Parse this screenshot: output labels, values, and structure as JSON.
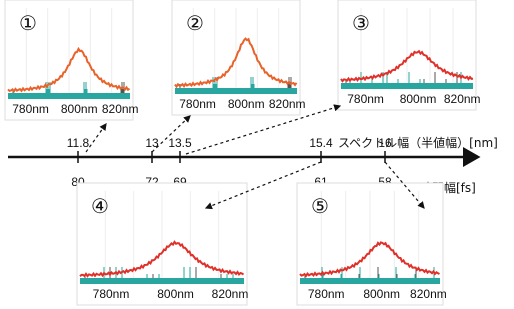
{
  "axis": {
    "spectral_title": "スペクトル幅（半値幅）[nm]",
    "time_title": "時間幅[fs]"
  },
  "points": [
    {
      "spectral_width": "11.8",
      "pulse_width": "80"
    },
    {
      "spectral_width": "13",
      "pulse_width": "72"
    },
    {
      "spectral_width": "13.5",
      "pulse_width": "69"
    },
    {
      "spectral_width": "15.4",
      "pulse_width": "61"
    },
    {
      "spectral_width": "16",
      "pulse_width": "58"
    }
  ],
  "insets": [
    {
      "label": "①",
      "ticks": [
        "780nm",
        "800nm",
        "820nm"
      ]
    },
    {
      "label": "②",
      "ticks": [
        "780nm",
        "800nm",
        "820nm"
      ]
    },
    {
      "label": "③",
      "ticks": [
        "780nm",
        "800nm",
        "820nm"
      ]
    },
    {
      "label": "④",
      "ticks": [
        "780nm",
        "800nm",
        "820nm"
      ]
    },
    {
      "label": "⑤",
      "ticks": [
        "780nm",
        "800nm",
        "820nm"
      ]
    }
  ]
}
